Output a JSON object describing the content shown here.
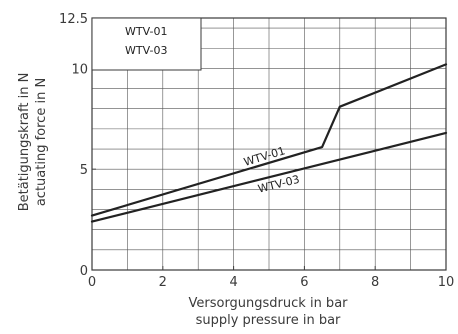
{
  "chart_data": {
    "type": "line",
    "title": "",
    "xlabel": [
      "Versorgungsdruck in bar",
      "supply pressure in bar"
    ],
    "ylabel": [
      "Betätigungskraft in N",
      "actuating force in N"
    ],
    "xlim": [
      0,
      10
    ],
    "ylim": [
      0,
      12.5
    ],
    "x_ticks": [
      0,
      2,
      4,
      6,
      8,
      10
    ],
    "x_tick_labels": [
      "0",
      "2",
      "4",
      "6",
      "8",
      "10"
    ],
    "y_ticks": [
      0,
      5,
      10,
      12.5
    ],
    "y_tick_labels": [
      "0",
      "5",
      "10",
      "12.5"
    ],
    "grid": true,
    "legend_position": "top-left",
    "legend": [
      "WTV-01",
      "WTV-03"
    ],
    "series": [
      {
        "name": "WTV-01",
        "x": [
          0,
          6.5,
          7.0,
          10
        ],
        "y": [
          2.7,
          6.1,
          8.1,
          10.2
        ],
        "color": "#222222"
      },
      {
        "name": "WTV-03",
        "x": [
          0,
          10
        ],
        "y": [
          2.4,
          6.8
        ],
        "color": "#222222"
      }
    ],
    "annotations": [
      {
        "text": "WTV-01",
        "series": 0
      },
      {
        "text": "WTV-03",
        "series": 1
      }
    ]
  }
}
